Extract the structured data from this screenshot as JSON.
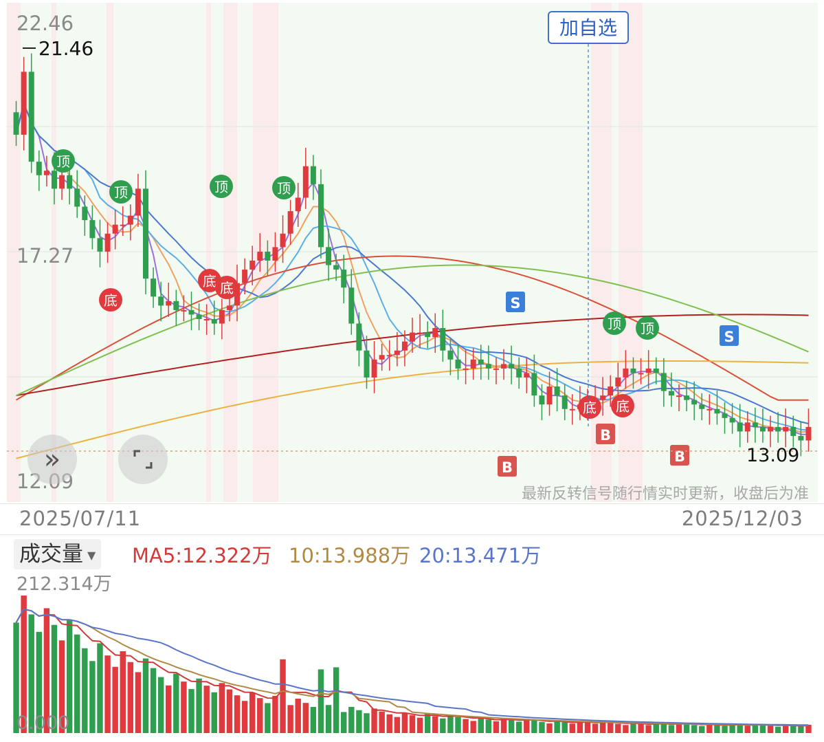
{
  "price_axis": {
    "top": "22.46",
    "mid": "17.27",
    "bottom": "12.09"
  },
  "highest_label": "21.46",
  "last_price_label": "13.09",
  "dates": {
    "start": "2025/07/11",
    "end": "2025/12/03"
  },
  "add_watchlist_label": "加自选",
  "realtime_hint": "最新反转信号随行情实时更新，收盘后为准",
  "volume": {
    "title": "成交量",
    "ma5": "MA5:12.322万",
    "ma10": "10:13.988万",
    "ma20": "20:13.471万",
    "max_label": "212.314万",
    "min_label": "0.000"
  },
  "colors": {
    "up": "#e0393e",
    "down": "#2f9e4f",
    "ma5": "#9b6fe0",
    "ma10": "#f0a060",
    "ma20": "#5aaee8",
    "ma30": "#4a78d0",
    "ma60": "#d9503a",
    "ma120": "#b02020",
    "ma250": "#eeb040",
    "ma_green": "#7fbf50"
  },
  "signals": {
    "top": "顶",
    "bottom": "底",
    "buy": "B",
    "sell": "S"
  },
  "controls": {
    "expand_icon": "double-chevron-right-icon",
    "fullscreen_icon": "fullscreen-icon"
  },
  "chart_data": {
    "type": "candlestick",
    "title": "",
    "x_range": [
      "2025/07/11",
      "2025/12/03"
    ],
    "ylim": [
      12.09,
      22.46
    ],
    "price_high": 21.46,
    "price_last": 13.09,
    "close_approx": [
      19.8,
      21.2,
      19.2,
      18.9,
      19.0,
      18.6,
      18.9,
      18.6,
      18.2,
      17.9,
      17.5,
      17.2,
      17.6,
      17.8,
      17.8,
      18.0,
      18.6,
      16.6,
      16.2,
      16.0,
      16.1,
      15.9,
      15.9,
      15.8,
      15.7,
      15.7,
      15.6,
      15.9,
      16.0,
      16.5,
      16.8,
      17.0,
      17.2,
      17.0,
      17.3,
      17.6,
      18.1,
      18.4,
      19.1,
      18.7,
      17.3,
      16.9,
      16.8,
      16.4,
      15.6,
      15.0,
      14.4,
      14.8,
      14.9,
      14.9,
      15.0,
      15.2,
      15.4,
      15.4,
      15.3,
      15.5,
      15.0,
      14.8,
      14.6,
      14.6,
      14.8,
      14.7,
      14.6,
      14.6,
      14.7,
      14.6,
      14.4,
      14.5,
      14.0,
      13.8,
      14.2,
      14.0,
      13.7,
      13.7,
      13.8,
      13.9,
      13.9,
      14.0,
      14.2,
      14.4,
      14.6,
      14.5,
      14.5,
      14.6,
      14.5,
      14.1,
      14.0,
      14.0,
      13.9,
      13.8,
      13.7,
      13.7,
      13.6,
      13.5,
      13.4,
      13.2,
      13.4,
      13.3,
      13.2,
      13.3,
      13.2,
      13.3,
      13.1,
      13.0,
      13.3
    ]
  }
}
